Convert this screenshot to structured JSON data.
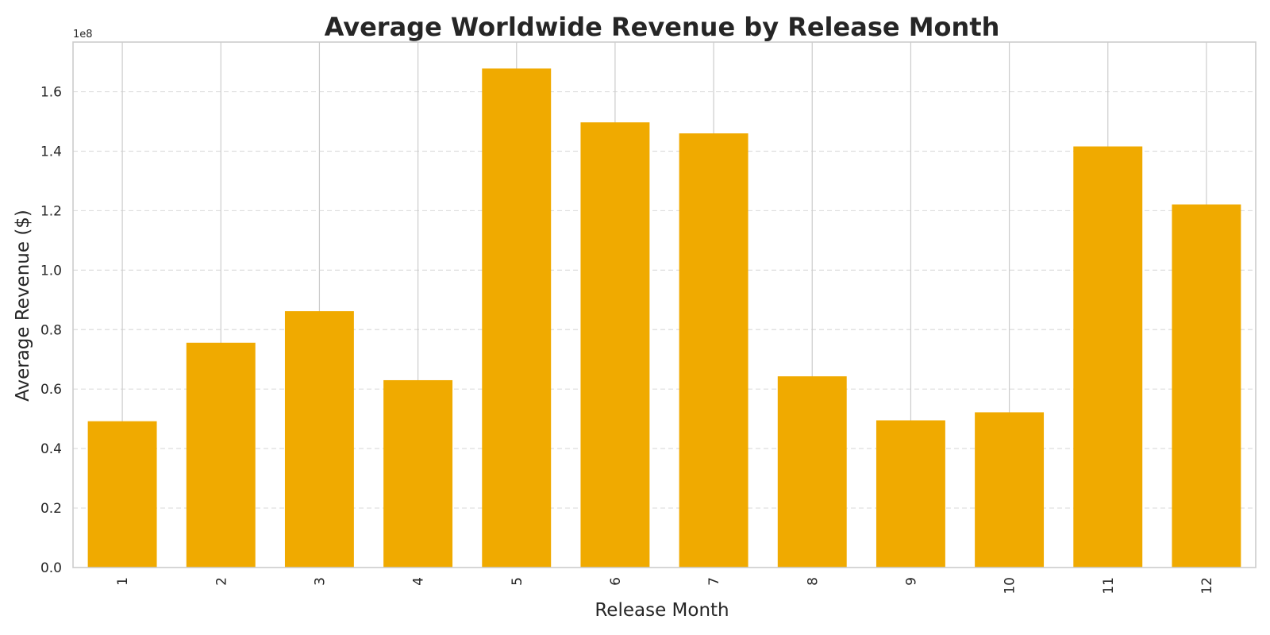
{
  "chart_data": {
    "type": "bar",
    "title": "Average Worldwide Revenue by Release Month",
    "xlabel": "Release Month",
    "ylabel": "Average Revenue ($)",
    "y_offset_label": "1e8",
    "y_scale": 100000000,
    "categories": [
      "1",
      "2",
      "3",
      "4",
      "5",
      "6",
      "7",
      "8",
      "9",
      "10",
      "11",
      "12"
    ],
    "values": [
      49200000,
      75600000,
      86200000,
      63000000,
      167800000,
      149700000,
      146000000,
      64300000,
      49500000,
      52200000,
      141600000,
      122100000
    ],
    "ylim": [
      0,
      176700000
    ],
    "yticks": [
      0,
      20000000,
      40000000,
      60000000,
      80000000,
      100000000,
      120000000,
      140000000,
      160000000
    ],
    "ytick_labels": [
      "0.0",
      "0.2",
      "0.4",
      "0.6",
      "0.8",
      "1.0",
      "1.2",
      "1.4",
      "1.6"
    ],
    "grid": true,
    "colors": {
      "bar": "#f0aa00",
      "grid_x": "#cccccc",
      "grid_y": "#dddddd",
      "spine": "#cccccc",
      "text": "#262626"
    }
  }
}
